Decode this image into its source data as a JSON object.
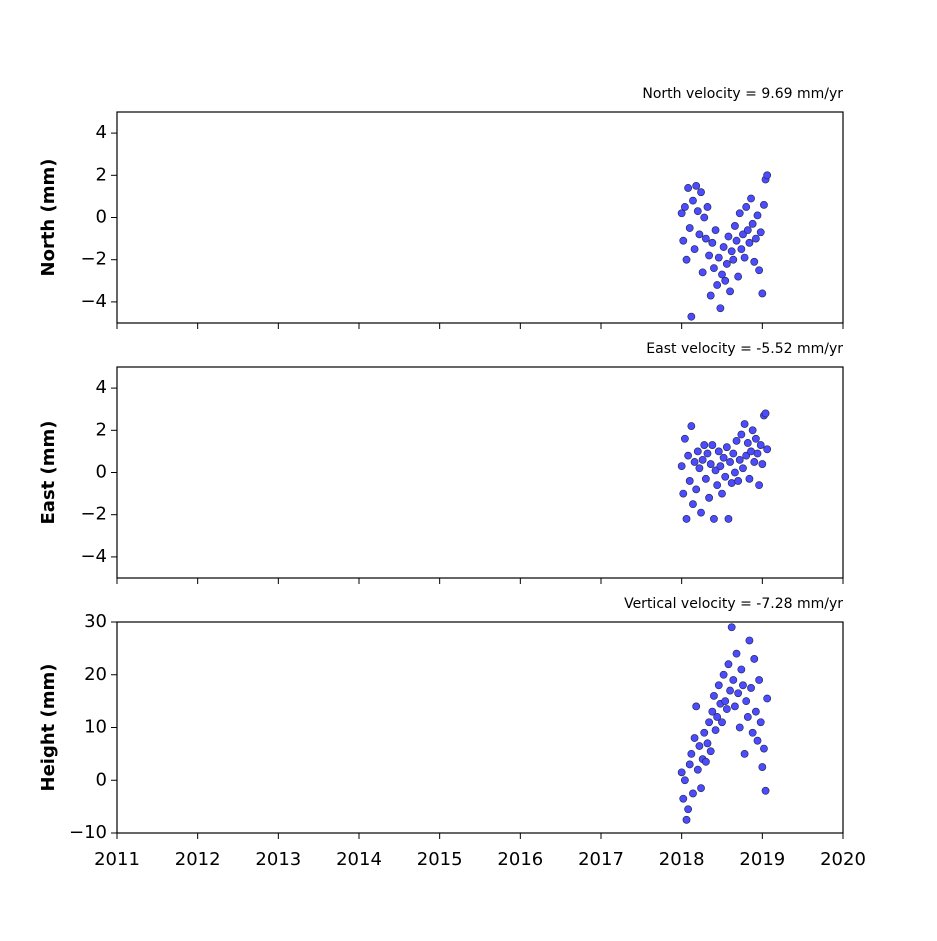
{
  "chart_data": [
    {
      "type": "scatter",
      "title": "North velocity = 9.69 mm/yr",
      "ylabel": "North (mm)",
      "color": "#4b4bff",
      "edgecolor": "#222244",
      "xlim": [
        2011,
        2020
      ],
      "xticks": [
        2011,
        2012,
        2013,
        2014,
        2015,
        2016,
        2017,
        2018,
        2019,
        2020
      ],
      "xtick_labels": false,
      "ylim": [
        -5,
        5
      ],
      "yticks": [
        {
          "value": -4,
          "label": "−4"
        },
        {
          "value": -2,
          "label": "−2"
        },
        0,
        2,
        4
      ],
      "x": [
        2018.0,
        2018.02,
        2018.04,
        2018.06,
        2018.08,
        2018.1,
        2018.12,
        2018.14,
        2018.16,
        2018.18,
        2018.2,
        2018.22,
        2018.24,
        2018.26,
        2018.28,
        2018.3,
        2018.32,
        2018.34,
        2018.36,
        2018.38,
        2018.4,
        2018.42,
        2018.44,
        2018.46,
        2018.48,
        2018.5,
        2018.52,
        2018.54,
        2018.56,
        2018.58,
        2018.6,
        2018.62,
        2018.64,
        2018.66,
        2018.68,
        2018.7,
        2018.72,
        2018.74,
        2018.76,
        2018.78,
        2018.8,
        2018.82,
        2018.84,
        2018.86,
        2018.88,
        2018.9,
        2018.92,
        2018.94,
        2018.96,
        2018.98,
        2019.0,
        2019.02,
        2019.04,
        2019.06
      ],
      "values": [
        0.2,
        -1.1,
        0.5,
        -2.0,
        1.4,
        -0.5,
        -4.7,
        0.8,
        -1.5,
        1.5,
        0.3,
        -0.8,
        1.2,
        -2.6,
        0.0,
        -1.0,
        0.5,
        -1.8,
        -3.7,
        -1.2,
        -2.4,
        -0.6,
        -3.2,
        -1.9,
        -4.3,
        -2.7,
        -1.4,
        -3.0,
        -2.2,
        -0.9,
        -3.5,
        -1.6,
        -2.0,
        -0.4,
        -1.1,
        -2.8,
        0.2,
        -1.5,
        -0.8,
        -1.9,
        0.5,
        -0.6,
        -1.2,
        0.9,
        -0.3,
        -2.1,
        -1.0,
        0.1,
        -2.5,
        -0.7,
        -3.6,
        0.6,
        1.8,
        2.0
      ]
    },
    {
      "type": "scatter",
      "title": "East velocity = -5.52 mm/yr",
      "ylabel": "East (mm)",
      "color": "#4b4bff",
      "edgecolor": "#222244",
      "xlim": [
        2011,
        2020
      ],
      "xticks": [
        2011,
        2012,
        2013,
        2014,
        2015,
        2016,
        2017,
        2018,
        2019,
        2020
      ],
      "xtick_labels": false,
      "ylim": [
        -5,
        5
      ],
      "yticks": [
        {
          "value": -4,
          "label": "−4"
        },
        {
          "value": -2,
          "label": "−2"
        },
        0,
        2,
        4
      ],
      "x": [
        2018.0,
        2018.02,
        2018.04,
        2018.06,
        2018.08,
        2018.1,
        2018.12,
        2018.14,
        2018.16,
        2018.18,
        2018.2,
        2018.22,
        2018.24,
        2018.26,
        2018.28,
        2018.3,
        2018.32,
        2018.34,
        2018.36,
        2018.38,
        2018.4,
        2018.42,
        2018.44,
        2018.46,
        2018.48,
        2018.5,
        2018.52,
        2018.54,
        2018.56,
        2018.58,
        2018.6,
        2018.62,
        2018.64,
        2018.66,
        2018.68,
        2018.7,
        2018.72,
        2018.74,
        2018.76,
        2018.78,
        2018.8,
        2018.82,
        2018.84,
        2018.86,
        2018.88,
        2018.9,
        2018.92,
        2018.94,
        2018.96,
        2018.98,
        2019.0,
        2019.02,
        2019.04,
        2019.06
      ],
      "values": [
        0.3,
        -1.0,
        1.6,
        -2.2,
        0.8,
        -0.4,
        2.2,
        -1.5,
        0.5,
        -0.8,
        1.0,
        0.2,
        -1.9,
        0.6,
        1.3,
        -0.3,
        0.9,
        -1.2,
        0.4,
        1.3,
        -2.2,
        0.1,
        -0.6,
        1.0,
        0.3,
        -1.0,
        0.7,
        -0.2,
        1.2,
        -2.2,
        0.5,
        -0.5,
        0.9,
        0.0,
        1.5,
        -0.4,
        0.6,
        1.8,
        0.2,
        2.3,
        0.8,
        1.4,
        -0.3,
        1.0,
        2.0,
        0.5,
        1.6,
        0.9,
        -0.6,
        1.3,
        0.4,
        2.7,
        2.8,
        1.1
      ]
    },
    {
      "type": "scatter",
      "title": "Vertical velocity = -7.28 mm/yr",
      "ylabel": "Height (mm)",
      "color": "#4b4bff",
      "edgecolor": "#222244",
      "xlim": [
        2011,
        2020
      ],
      "xticks": [
        2011,
        2012,
        2013,
        2014,
        2015,
        2016,
        2017,
        2018,
        2019,
        2020
      ],
      "xtick_labels": true,
      "ylim": [
        -10,
        30
      ],
      "yticks": [
        {
          "value": -10,
          "label": "−10"
        },
        0,
        10,
        20,
        30
      ],
      "x": [
        2018.0,
        2018.02,
        2018.04,
        2018.06,
        2018.08,
        2018.1,
        2018.12,
        2018.14,
        2018.16,
        2018.18,
        2018.2,
        2018.22,
        2018.24,
        2018.26,
        2018.28,
        2018.3,
        2018.32,
        2018.34,
        2018.36,
        2018.38,
        2018.4,
        2018.42,
        2018.44,
        2018.46,
        2018.48,
        2018.5,
        2018.52,
        2018.54,
        2018.56,
        2018.58,
        2018.6,
        2018.62,
        2018.64,
        2018.66,
        2018.68,
        2018.7,
        2018.72,
        2018.74,
        2018.76,
        2018.78,
        2018.8,
        2018.82,
        2018.84,
        2018.86,
        2018.88,
        2018.9,
        2018.92,
        2018.94,
        2018.96,
        2018.98,
        2019.0,
        2019.02,
        2019.04,
        2019.06
      ],
      "values": [
        1.5,
        -3.5,
        0.0,
        -7.5,
        -5.5,
        3.0,
        5.0,
        -2.5,
        8.0,
        14.0,
        2.0,
        6.5,
        -1.5,
        4.0,
        9.0,
        3.5,
        7.0,
        11.0,
        5.5,
        13.0,
        16.0,
        9.5,
        12.0,
        18.0,
        14.5,
        11.0,
        20.0,
        15.0,
        13.5,
        22.0,
        17.0,
        29.0,
        19.0,
        14.0,
        24.0,
        16.5,
        10.0,
        21.0,
        18.0,
        5.0,
        15.0,
        12.0,
        26.5,
        17.5,
        9.0,
        23.0,
        13.0,
        7.5,
        19.0,
        11.0,
        2.5,
        6.0,
        -2.0,
        15.5
      ]
    }
  ]
}
